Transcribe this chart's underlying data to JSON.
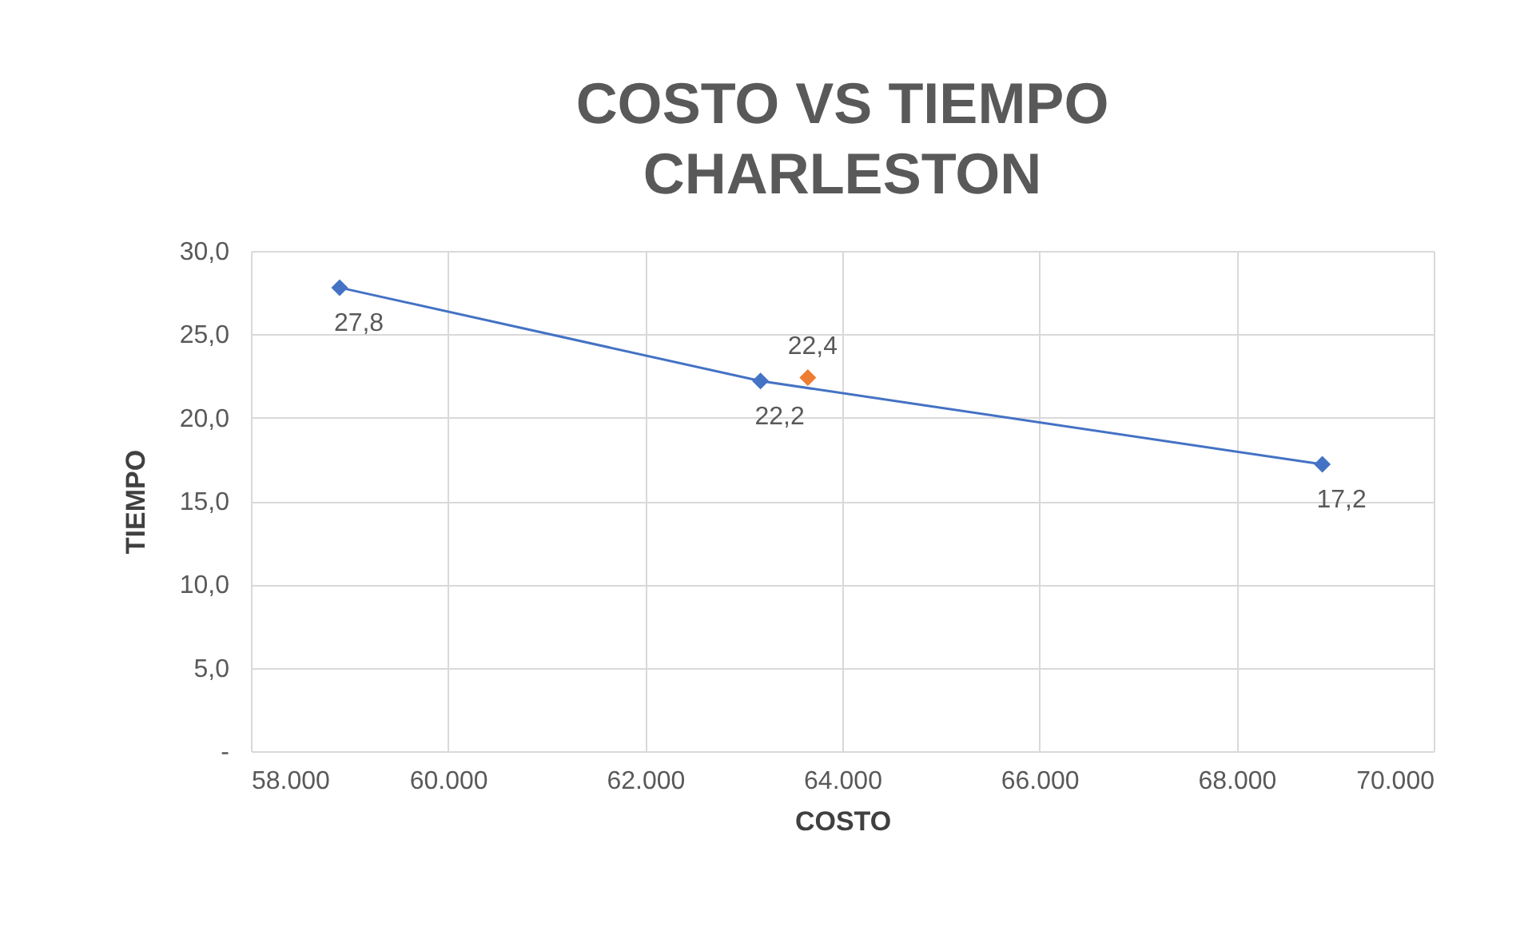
{
  "chart_data": {
    "type": "scatter",
    "title": "COSTO VS TIEMPO CHARLESTON",
    "xlabel": "COSTO",
    "ylabel": "TIEMPO",
    "xlim": [
      58000,
      70000
    ],
    "xticks": [
      {
        "value": 58000,
        "label": "58.000"
      },
      {
        "value": 60000,
        "label": "60.000"
      },
      {
        "value": 62000,
        "label": "62.000"
      },
      {
        "value": 64000,
        "label": "64.000"
      },
      {
        "value": 66000,
        "label": "66.000"
      },
      {
        "value": 68000,
        "label": "68.000"
      },
      {
        "value": 70000,
        "label": "70.000"
      }
    ],
    "ylim": [
      0,
      30
    ],
    "yticks": [
      {
        "value": 0,
        "label": "-"
      },
      {
        "value": 5,
        "label": "5,0"
      },
      {
        "value": 10,
        "label": "10,0"
      },
      {
        "value": 15,
        "label": "15,0"
      },
      {
        "value": 20,
        "label": "20,0"
      },
      {
        "value": 25,
        "label": "25,0"
      },
      {
        "value": 30,
        "label": "30,0"
      }
    ],
    "grid": true,
    "marker": "diamond",
    "series": [
      {
        "type": "line",
        "color": "#4472c4",
        "x": [
          58900,
          63170,
          68870
        ],
        "values": [
          27.8,
          22.2,
          17.2
        ],
        "value_labels": [
          "27,8",
          "22,2",
          "17,2"
        ]
      },
      {
        "type": "scatter",
        "color": "#ed7d31",
        "x": [
          63650
        ],
        "values": [
          22.4
        ],
        "value_labels": [
          "22,4"
        ]
      }
    ]
  }
}
